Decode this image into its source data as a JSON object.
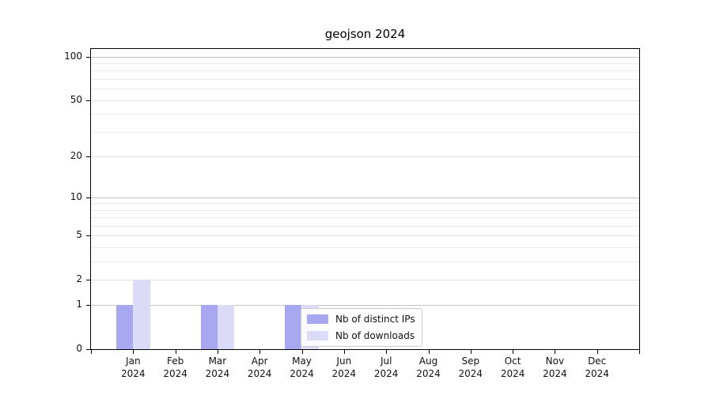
{
  "chart_data": {
    "type": "bar",
    "title": "geojson 2024",
    "categories": [
      {
        "month": "Jan",
        "year": "2024"
      },
      {
        "month": "Feb",
        "year": "2024"
      },
      {
        "month": "Mar",
        "year": "2024"
      },
      {
        "month": "Apr",
        "year": "2024"
      },
      {
        "month": "May",
        "year": "2024"
      },
      {
        "month": "Jun",
        "year": "2024"
      },
      {
        "month": "Jul",
        "year": "2024"
      },
      {
        "month": "Aug",
        "year": "2024"
      },
      {
        "month": "Sep",
        "year": "2024"
      },
      {
        "month": "Oct",
        "year": "2024"
      },
      {
        "month": "Nov",
        "year": "2024"
      },
      {
        "month": "Dec",
        "year": "2024"
      }
    ],
    "series": [
      {
        "name": "Nb of distinct IPs",
        "color": "#a8a8f0",
        "values": [
          1,
          0,
          1,
          0,
          1,
          0,
          0,
          0,
          0,
          0,
          0,
          0
        ]
      },
      {
        "name": "Nb of downloads",
        "color": "#dbdbf8",
        "values": [
          2,
          0,
          1,
          0,
          1,
          0,
          0,
          0,
          0,
          0,
          0,
          0
        ]
      }
    ],
    "y_axis": {
      "scale": "log1p",
      "ticks": [
        0,
        1,
        2,
        5,
        10,
        20,
        50,
        100
      ],
      "decade_ticks": [
        1,
        10,
        100
      ],
      "minor_gridlines": [
        3,
        4,
        6,
        7,
        8,
        9,
        30,
        40,
        60,
        70,
        80,
        90
      ],
      "ylim": [
        0,
        113
      ]
    },
    "xlabel": "",
    "ylabel": "",
    "grid": true,
    "legend": {
      "position": "lower-center",
      "items": [
        "Nb of distinct IPs",
        "Nb of downloads"
      ]
    }
  },
  "colors": {
    "background": "#ffffff",
    "axis": "#000000",
    "text": "#111111",
    "grid_major": "#c5c5c5",
    "grid_mid": "#dedede",
    "grid_minor": "#ececec",
    "legend_border": "#cccccc"
  }
}
